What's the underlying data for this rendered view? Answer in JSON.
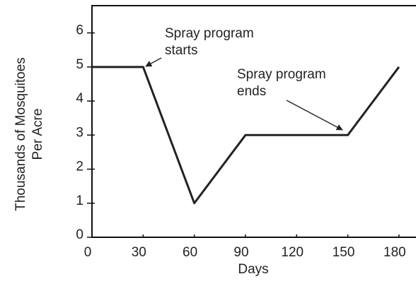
{
  "chart_data": {
    "type": "line",
    "xlabel": "Days",
    "ylabel": [
      "Thousands of Mosquitoes",
      "Per Acre"
    ],
    "x": [
      0,
      30,
      60,
      90,
      150,
      180
    ],
    "series": [
      {
        "color": "#222222",
        "values": [
          5,
          5,
          1,
          3,
          3,
          5
        ]
      }
    ],
    "xlim": [
      0,
      190
    ],
    "ylim": [
      0,
      6.8
    ],
    "xticks": [
      0,
      30,
      60,
      90,
      120,
      150,
      180
    ],
    "yticks": [
      0,
      1,
      2,
      3,
      4,
      5,
      6
    ],
    "annotations": [
      {
        "lines": [
          "Spray program",
          "starts"
        ]
      },
      {
        "lines": [
          "Spray program",
          "ends"
        ]
      }
    ]
  }
}
